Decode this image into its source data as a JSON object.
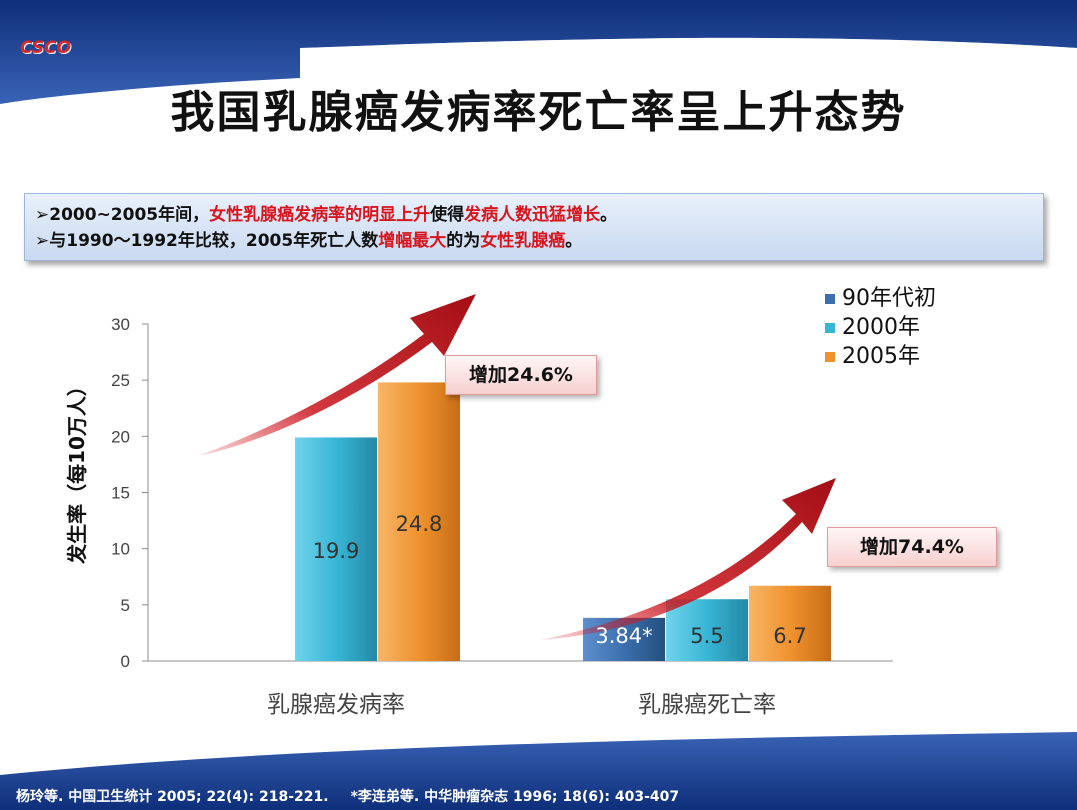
{
  "logo": "CSCO",
  "title": "我国乳腺癌发病率死亡率呈上升态势",
  "notes": {
    "line1": {
      "bullet": "➢",
      "part1": "2000~2005年间，",
      "part2": "女性乳腺癌发病率的明显上升",
      "part3": "使得",
      "part4": "发病人数迅猛增长",
      "part5": "。"
    },
    "line2": {
      "bullet": "➢",
      "part1": "与1990～1992年比较，2005年死亡人数",
      "part2": "增幅最大",
      "part3": "的为",
      "part4": "女性乳腺癌",
      "part5": "。"
    }
  },
  "callouts": {
    "incidence": "增加24.6%",
    "mortality": "增加74.4%"
  },
  "footer": {
    "ref1": "杨玲等. 中国卫生统计 2005; 22(4): 218-221.",
    "ref2": "*李连弟等. 中华肿瘤杂志 1996; 18(6): 403-407"
  },
  "colors": {
    "series_90s": "#3b6fae",
    "series_2000": "#38b6d6",
    "series_2005": "#f0922e",
    "accent_red": "#d8151d",
    "banner_blue": "#1f3f8c"
  },
  "chart_data": {
    "type": "bar",
    "ylabel": "发生率（每10万人）",
    "ylim": [
      0,
      30
    ],
    "yticks": [
      0,
      5,
      10,
      15,
      20,
      25,
      30
    ],
    "categories": [
      "乳腺癌发病率",
      "乳腺癌死亡率"
    ],
    "series": [
      {
        "name": "90年代初",
        "values": [
          null,
          3.84
        ],
        "labels": [
          "",
          "3.84*"
        ]
      },
      {
        "name": "2000年",
        "values": [
          19.9,
          5.5
        ],
        "labels": [
          "19.9",
          "5.5"
        ]
      },
      {
        "name": "2005年",
        "values": [
          24.8,
          6.7
        ],
        "labels": [
          "24.8",
          "6.7"
        ]
      }
    ],
    "legend": "top-right",
    "grid": false
  }
}
